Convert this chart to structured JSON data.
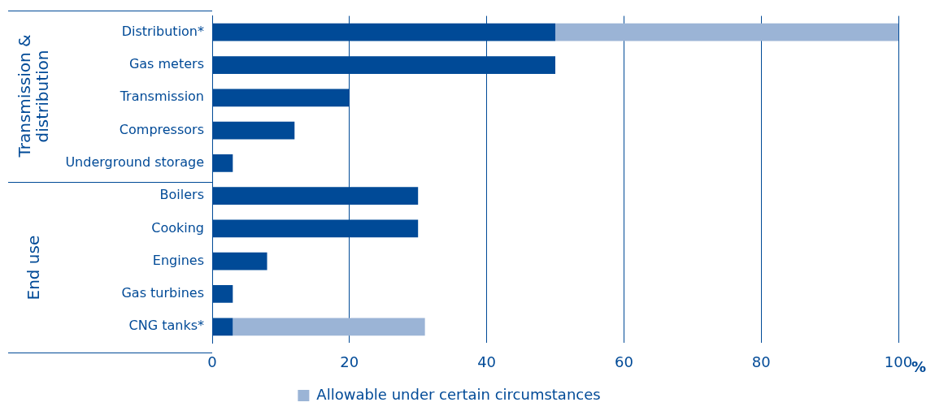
{
  "chart_data": {
    "type": "bar",
    "orientation": "horizontal",
    "stacked": true,
    "categories": [
      "Distribution*",
      "Gas meters",
      "Transmission",
      "Compressors",
      "Underground storage",
      "Boilers",
      "Cooking",
      "Engines",
      "Gas turbines",
      "CNG tanks*"
    ],
    "series": [
      {
        "color": "#004a97",
        "values": [
          50,
          50,
          20,
          12,
          3,
          30,
          30,
          8,
          3,
          3
        ]
      },
      {
        "name": "Allowable under certain circumstances",
        "color": "#9bb4d6",
        "values": [
          50,
          null,
          null,
          null,
          null,
          null,
          null,
          null,
          null,
          28
        ]
      }
    ],
    "xlim": [
      0,
      100
    ],
    "xticks": [
      0,
      20,
      40,
      60,
      80,
      100
    ],
    "xlabel": "%",
    "grid": "x",
    "legend": "bottom",
    "annotations": [
      "Transmission & distribution",
      "End use"
    ]
  }
}
